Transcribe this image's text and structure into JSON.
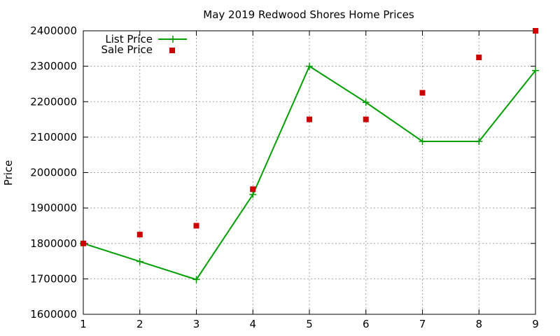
{
  "chart_data": {
    "type": "line",
    "title": "May 2019 Redwood Shores Home Prices",
    "xlabel": "",
    "ylabel": "Price",
    "x": [
      1,
      2,
      3,
      4,
      5,
      6,
      7,
      8,
      9
    ],
    "xlim": [
      1,
      9
    ],
    "ylim": [
      1600000,
      2400000
    ],
    "xticks": [
      "1",
      "2",
      "3",
      "4",
      "5",
      "6",
      "7",
      "8",
      "9"
    ],
    "yticks": [
      "1600000",
      "1700000",
      "1800000",
      "1900000",
      "2000000",
      "2100000",
      "2200000",
      "2300000",
      "2400000"
    ],
    "grid": true,
    "legend_position": "top-left",
    "series": [
      {
        "name": "List Price",
        "style": "line-with-plus-markers",
        "color": "#009e00",
        "values": [
          1800000,
          1749000,
          1698000,
          1938000,
          2300000,
          2198000,
          2088000,
          2088000,
          2288000
        ]
      },
      {
        "name": "Sale Price",
        "style": "square-markers",
        "color": "#cc0000",
        "values": [
          1800000,
          1825000,
          1850000,
          1953000,
          2150000,
          2150000,
          2225000,
          2325000,
          2400000
        ]
      }
    ]
  }
}
